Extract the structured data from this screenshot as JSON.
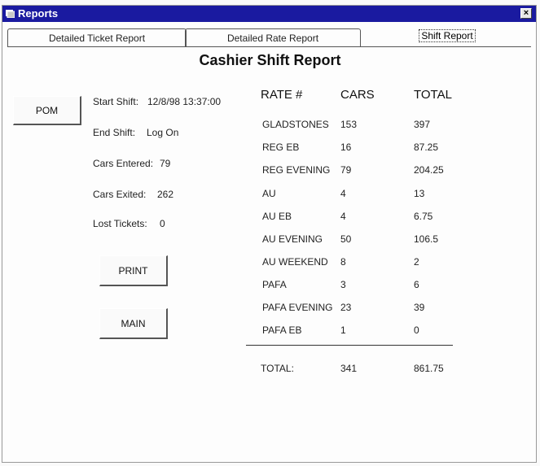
{
  "window": {
    "title": "Reports",
    "close_label": "×"
  },
  "tabs": [
    {
      "label": "Detailed Ticket Report"
    },
    {
      "label": "Detailed Rate Report"
    },
    {
      "label": "Shift Report"
    }
  ],
  "page_title": "Cashier Shift Report",
  "buttons": {
    "pom": "POM",
    "print": "PRINT",
    "main": "MAIN"
  },
  "shift_info": {
    "start_label": "Start Shift:",
    "start_value": "12/8/98 13:37:00",
    "end_label": "End Shift:",
    "end_value": "Log On",
    "entered_label": "Cars Entered:",
    "entered_value": "79",
    "exited_label": "Cars Exited:",
    "exited_value": "262",
    "lost_label": "Lost Tickets:",
    "lost_value": "0"
  },
  "rate_table": {
    "headers": [
      "RATE #",
      "CARS",
      "TOTAL"
    ],
    "rows": [
      {
        "rate": "GLADSTONES",
        "cars": "153",
        "total": "397"
      },
      {
        "rate": "REG EB",
        "cars": "16",
        "total": "87.25"
      },
      {
        "rate": "REG EVENING",
        "cars": "79",
        "total": "204.25"
      },
      {
        "rate": "AU",
        "cars": "4",
        "total": "13"
      },
      {
        "rate": "AU EB",
        "cars": "4",
        "total": "6.75"
      },
      {
        "rate": "AU EVENING",
        "cars": "50",
        "total": "106.5"
      },
      {
        "rate": "AU WEEKEND",
        "cars": "8",
        "total": "2"
      },
      {
        "rate": "PAFA",
        "cars": "3",
        "total": "6"
      },
      {
        "rate": "PAFA EVENING",
        "cars": "23",
        "total": "39"
      },
      {
        "rate": "PAFA EB",
        "cars": "1",
        "total": "0"
      }
    ],
    "total_label": "TOTAL:",
    "total_cars": "341",
    "total_amount": "861.75"
  }
}
